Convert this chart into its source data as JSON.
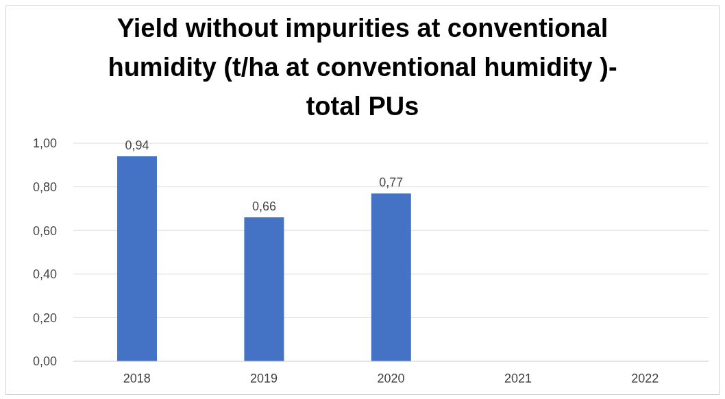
{
  "chart_data": {
    "type": "bar",
    "title": "Yield without impurities at conventional humidity (t/ha at conventional humidity )- total PUs",
    "categories": [
      "2018",
      "2019",
      "2020",
      "2021",
      "2022"
    ],
    "values": [
      0.94,
      0.66,
      0.77,
      null,
      null
    ],
    "value_labels": [
      "0,94",
      "0,66",
      "0,77",
      null,
      null
    ],
    "color": "#4472c4",
    "ylim": [
      0,
      1
    ],
    "yticks": [
      {
        "value": 0,
        "label": "0,00"
      },
      {
        "value": 0.2,
        "label": "0,20"
      },
      {
        "value": 0.4,
        "label": "0,40"
      },
      {
        "value": 0.6,
        "label": "0,60"
      },
      {
        "value": 0.8,
        "label": "0,80"
      },
      {
        "value": 1,
        "label": "1,00"
      }
    ],
    "grid": "y"
  }
}
